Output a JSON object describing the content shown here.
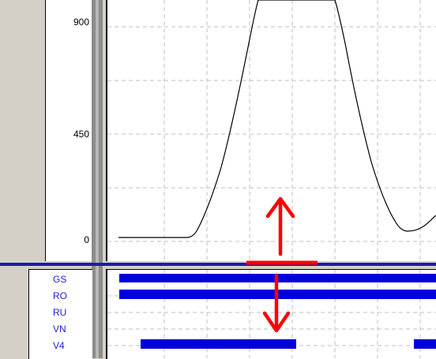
{
  "y_axis": {
    "ticks": [
      "900",
      "450",
      "0"
    ]
  },
  "lanes": {
    "labels": [
      "GS",
      "RO",
      "RU",
      "VN",
      "V4"
    ]
  },
  "colors": {
    "curve": "#000000",
    "arrow": "#ff0000",
    "divider": "#1c1ca8",
    "lane_bar": "#0000dd",
    "lane_label": "#1f1fcc"
  },
  "icons": {
    "up_arrow": "red-up-arrow-icon",
    "down_arrow": "red-down-arrow-icon"
  }
}
